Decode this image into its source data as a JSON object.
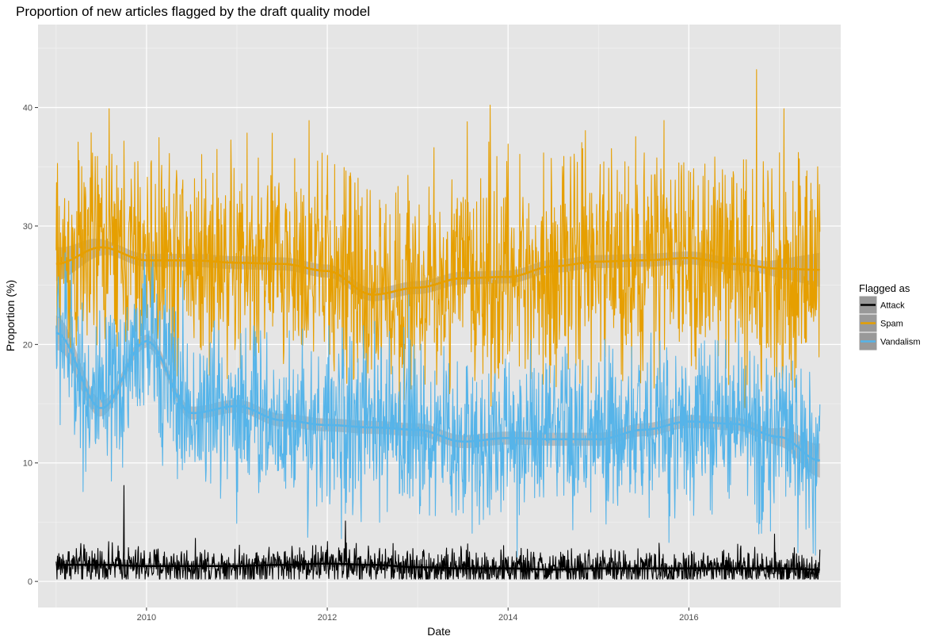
{
  "chart_data": {
    "type": "line",
    "title": "Proportion of new articles flagged by the draft quality model",
    "xlabel": "Date",
    "ylabel": "Proportion (%)",
    "x_range": [
      "2008-10-19",
      "2017-09-05"
    ],
    "xlim": [
      2008.8,
      2017.68
    ],
    "ylim": [
      -2.2,
      47.0
    ],
    "x_ticks": [
      {
        "value": 2010,
        "label": "2010"
      },
      {
        "value": 2012,
        "label": "2012"
      },
      {
        "value": 2014,
        "label": "2014"
      },
      {
        "value": 2016,
        "label": "2016"
      }
    ],
    "y_ticks": [
      0,
      10,
      20,
      30,
      40
    ],
    "grid": true,
    "panel_background": "#e5e5e5",
    "legend": {
      "title": "Flagged as",
      "placement": "right",
      "entries": [
        "Attack",
        "Spam",
        "Vandalism"
      ]
    },
    "series": [
      {
        "name": "Attack",
        "color": "#000000",
        "x": [
          2009.0,
          2009.5,
          2010.0,
          2010.5,
          2011.0,
          2011.5,
          2012.0,
          2012.5,
          2013.0,
          2013.5,
          2014.0,
          2014.5,
          2015.0,
          2015.5,
          2016.0,
          2016.5,
          2017.0,
          2017.45
        ],
        "values": [
          1.4,
          1.4,
          1.3,
          1.3,
          1.3,
          1.4,
          1.5,
          1.4,
          1.2,
          1.1,
          1.1,
          1.0,
          1.1,
          1.1,
          1.1,
          1.1,
          1.1,
          1.0
        ],
        "amplitude": 0.8,
        "spikes": [
          {
            "x": 2009.75,
            "y": 8.1
          },
          {
            "x": 2012.2,
            "y": 5.1
          },
          {
            "x": 2016.95,
            "y": 4.0
          }
        ],
        "trend": [
          1.4,
          1.4,
          1.3,
          1.3,
          1.3,
          1.4,
          1.5,
          1.4,
          1.2,
          1.1,
          1.1,
          1.0,
          1.1,
          1.1,
          1.1,
          1.1,
          1.1,
          1.0
        ]
      },
      {
        "name": "Spam",
        "color": "#e69f00",
        "x": [
          2009.0,
          2009.5,
          2010.0,
          2010.5,
          2011.0,
          2011.5,
          2012.0,
          2012.5,
          2013.0,
          2013.5,
          2014.0,
          2014.5,
          2015.0,
          2015.5,
          2016.0,
          2016.5,
          2017.0,
          2017.45
        ],
        "values": [
          26.8,
          28.2,
          27.1,
          27.1,
          26.9,
          26.8,
          26.2,
          24.2,
          24.8,
          25.6,
          25.7,
          26.6,
          27.0,
          27.1,
          27.3,
          26.8,
          26.4,
          26.3
        ],
        "amplitude": 4.5,
        "spikes": [
          {
            "x": 2013.8,
            "y": 40.2
          },
          {
            "x": 2016.75,
            "y": 43.2
          },
          {
            "x": 2017.05,
            "y": 39.9
          },
          {
            "x": 2011.8,
            "y": 38.9
          },
          {
            "x": 2013.55,
            "y": 38.8
          }
        ],
        "trend": [
          26.8,
          28.2,
          27.1,
          27.1,
          26.9,
          26.8,
          26.2,
          24.2,
          24.8,
          25.6,
          25.7,
          26.6,
          27.0,
          27.1,
          27.3,
          26.8,
          26.4,
          26.3
        ]
      },
      {
        "name": "Vandalism",
        "color": "#56b4e9",
        "x": [
          2009.0,
          2009.5,
          2010.0,
          2010.5,
          2011.0,
          2011.5,
          2012.0,
          2012.5,
          2013.0,
          2013.5,
          2014.0,
          2014.5,
          2015.0,
          2015.5,
          2016.0,
          2016.5,
          2017.0,
          2017.45
        ],
        "values": [
          21.0,
          14.6,
          20.3,
          14.2,
          14.8,
          13.6,
          13.2,
          13.0,
          12.8,
          11.8,
          12.1,
          12.0,
          12.0,
          12.8,
          13.5,
          13.3,
          12.2,
          10.2
        ],
        "amplitude": 3.6,
        "spikes": [
          {
            "x": 2010.4,
            "y": 26.2
          },
          {
            "x": 2012.9,
            "y": 24.2
          },
          {
            "x": 2011.0,
            "y": 4.9
          }
        ],
        "trend": [
          21.0,
          14.6,
          20.3,
          14.2,
          14.8,
          13.6,
          13.2,
          13.0,
          12.8,
          11.8,
          12.1,
          12.0,
          12.0,
          12.8,
          13.5,
          13.3,
          12.2,
          10.2
        ]
      }
    ]
  }
}
